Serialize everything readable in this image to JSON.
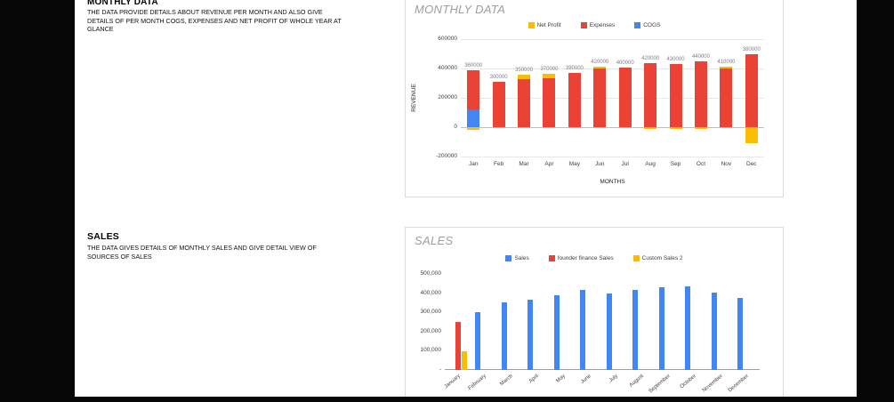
{
  "page": {
    "sections": [
      {
        "heading": "MONTHLY DATA",
        "description": "THE DATA PROVIDE DETAILS ABOUT REVENUE PER MONTH AND ALSO GIVE DETAILS OF PER MONTH COGS, EXPENSES AND NET PROFIT OF WHOLE YEAR AT GLANCE"
      },
      {
        "heading": "SALES",
        "description": "THE DATA GIVES DETAILS OF MONTHLY SALES AND GIVE DETAIL VIEW OF SOURCES OF SALES"
      }
    ]
  },
  "chart_data": [
    {
      "type": "bar",
      "title": "MONTHLY DATA",
      "ylabel": "REVENUE",
      "xlabel": "MONTHS",
      "legend_position": "top",
      "grid": true,
      "categories": [
        "Jan",
        "Feb",
        "Mar",
        "Apr",
        "May",
        "Jun",
        "Jul",
        "Aug",
        "Sep",
        "Oct",
        "Nov",
        "Dec"
      ],
      "series": [
        {
          "name": "Net Profit",
          "color": "#FBBC04",
          "values": [
            -20000,
            -5000,
            25000,
            30000,
            -5000,
            15000,
            -5000,
            -15000,
            -10000,
            -10000,
            10000,
            -110000
          ]
        },
        {
          "name": "Expenses",
          "color": "#EA4335",
          "values": [
            390000,
            310000,
            330000,
            335000,
            370000,
            400000,
            405000,
            435000,
            430000,
            450000,
            400000,
            500000
          ]
        },
        {
          "name": "COGS",
          "color": "#4285F4",
          "values": [
            120000,
            0,
            0,
            0,
            0,
            0,
            0,
            0,
            0,
            0,
            0,
            0
          ]
        }
      ],
      "bar_labels": [
        "360000",
        "300000",
        "350000",
        "370000",
        "390000",
        "420000",
        "400000",
        "420000",
        "430000",
        "440000",
        "410000",
        "380000"
      ],
      "yticks": [
        600000,
        400000,
        200000,
        0,
        -200000
      ],
      "ylim": [
        -200000,
        600000
      ]
    },
    {
      "type": "bar",
      "title": "SALES",
      "ylabel": "",
      "xlabel": "",
      "legend_position": "top",
      "grid": false,
      "categories": [
        "January",
        "February",
        "March",
        "April",
        "May",
        "June",
        "July",
        "August",
        "September",
        "October",
        "November",
        "December"
      ],
      "series": [
        {
          "name": "Sales",
          "color": "#4285F4",
          "values": [
            0,
            300000,
            350000,
            365000,
            390000,
            415000,
            400000,
            415000,
            430000,
            435000,
            405000,
            375000
          ]
        },
        {
          "name": "founder finance Sales",
          "color": "#EA4335",
          "values": [
            250000,
            0,
            0,
            0,
            0,
            0,
            0,
            0,
            0,
            0,
            0,
            0
          ]
        },
        {
          "name": "Custom Sales 2",
          "color": "#FBBC04",
          "values": [
            95000,
            0,
            0,
            0,
            0,
            0,
            0,
            0,
            0,
            0,
            0,
            0
          ]
        }
      ],
      "yticks": [
        500000,
        400000,
        300000,
        200000,
        100000,
        0
      ],
      "ytick_labels": [
        "500,000",
        "400,000",
        "300,000",
        "200,000",
        "100,000",
        "-"
      ],
      "ylim": [
        0,
        500000
      ]
    }
  ]
}
